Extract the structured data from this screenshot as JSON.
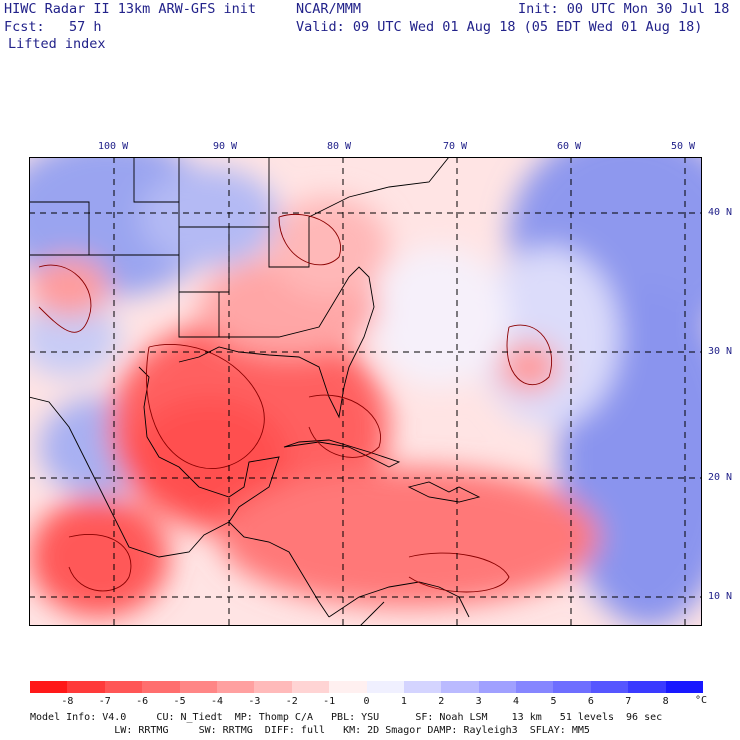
{
  "header": {
    "title": "HIWC Radar II 13km ARW-GFS init",
    "org": "NCAR/MMM",
    "init": "Init: 00 UTC Mon 30 Jul 18",
    "fcst": "Fcst:   57 h",
    "valid": "Valid: 09 UTC Wed 01 Aug 18 (05 EDT Wed 01 Aug 18)",
    "field": "Lifted index"
  },
  "map": {
    "lon_labels": [
      "100 W",
      "90 W",
      "80 W",
      "70 W",
      "60 W",
      "50 W"
    ],
    "lat_labels": [
      "40 N",
      "30 N",
      "20 N",
      "10 N"
    ]
  },
  "legend": {
    "labels": [
      "-8",
      "-7",
      "-6",
      "-5",
      "-4",
      "-3",
      "-2",
      "-1",
      "0",
      "1",
      "2",
      "3",
      "4",
      "5",
      "6",
      "7",
      "8"
    ],
    "unit": "°C",
    "colors": [
      "#ff1818",
      "#ff3a3a",
      "#ff5656",
      "#ff6e6e",
      "#ff8686",
      "#ffa0a0",
      "#ffbaba",
      "#ffd4d4",
      "#fff0f0",
      "#f0f0ff",
      "#d4d4ff",
      "#babaff",
      "#a0a0ff",
      "#8686ff",
      "#6e6eff",
      "#5656ff",
      "#3a3aff",
      "#1818ff"
    ]
  },
  "footer": {
    "line1": "Model Info: V4.0     CU: N_Tiedt  MP: Thomp C/A   PBL: YSU      SF: Noah LSM    13 km   51 levels  96 sec",
    "line2": "              LW: RRTMG     SW: RRTMG  DIFF: full   KM: 2D Smagor DAMP: Rayleigh3  SFLAY: MM5"
  }
}
